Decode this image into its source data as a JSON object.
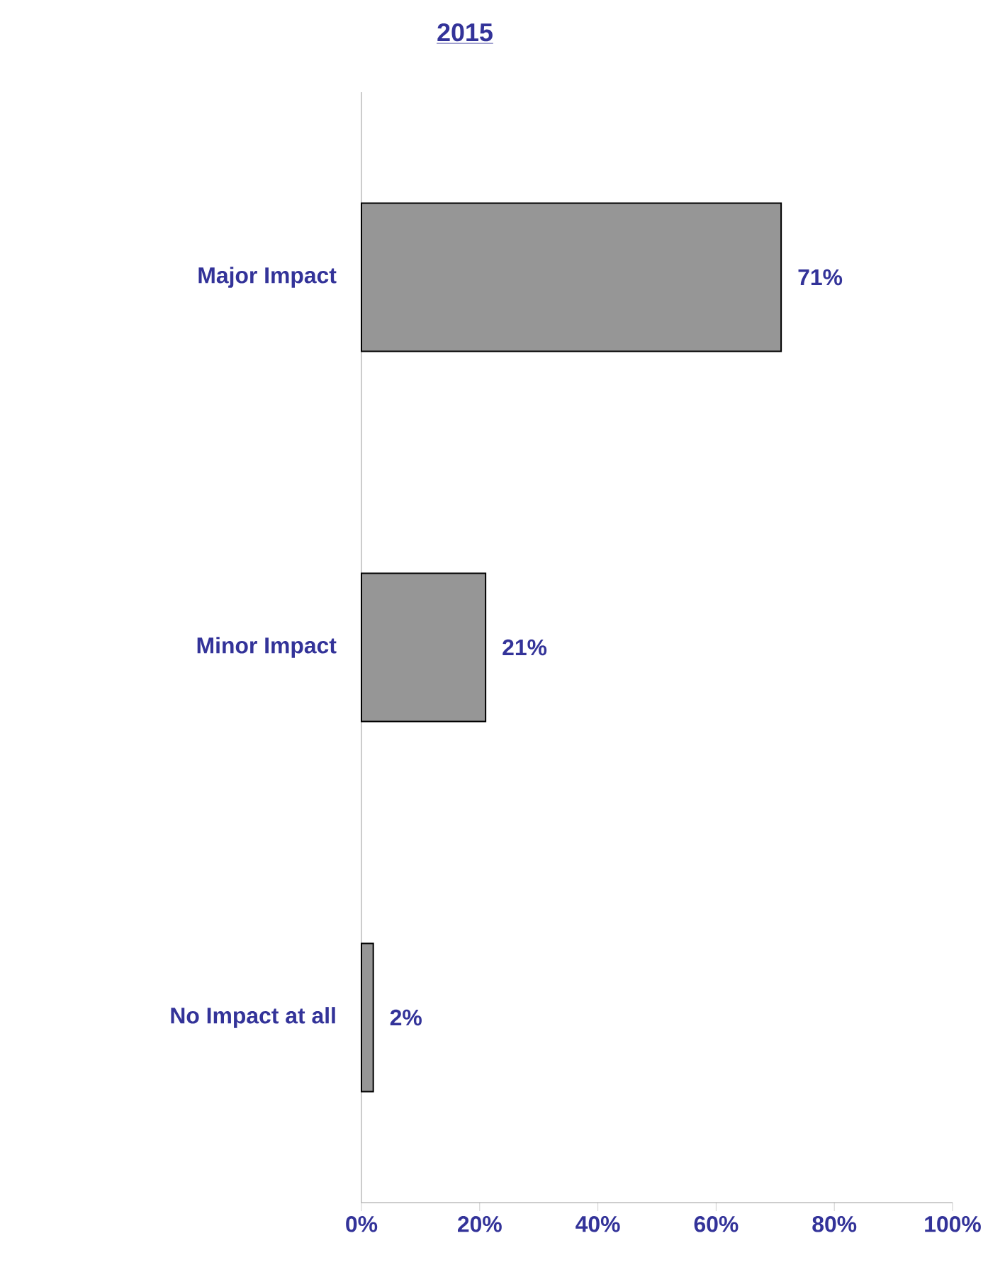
{
  "chart_data": {
    "type": "bar",
    "orientation": "horizontal",
    "title": "2015",
    "categories": [
      "Major Impact",
      "Minor Impact",
      "No Impact at all"
    ],
    "values": [
      71,
      21,
      2
    ],
    "value_labels": [
      "71%",
      "21%",
      "2%"
    ],
    "color": "#969696",
    "xlim": [
      0,
      100
    ],
    "xticks": [
      {
        "value": 0,
        "label": "0%"
      },
      {
        "value": 20,
        "label": "20%"
      },
      {
        "value": 40,
        "label": "40%"
      },
      {
        "value": 60,
        "label": "60%"
      },
      {
        "value": 80,
        "label": "80%"
      },
      {
        "value": 100,
        "label": "100%"
      }
    ],
    "grid": false
  }
}
